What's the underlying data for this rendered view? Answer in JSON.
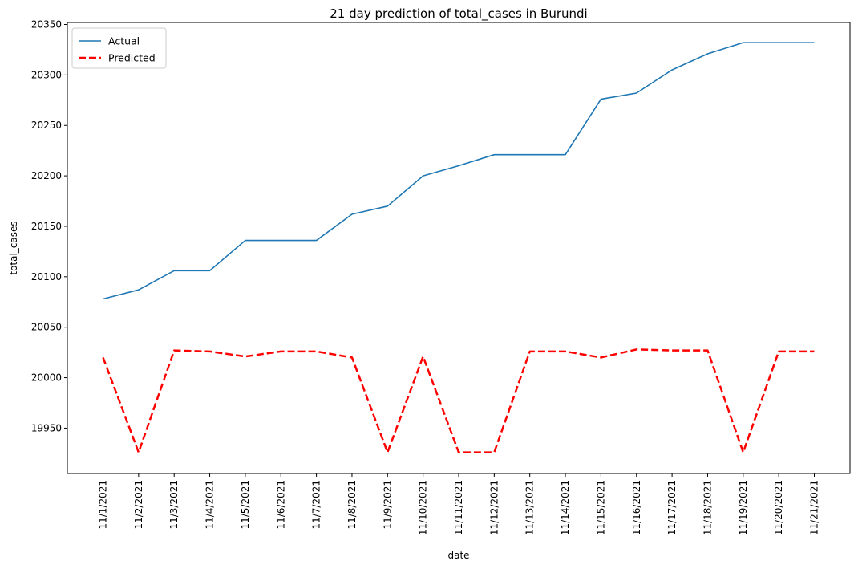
{
  "chart_data": {
    "type": "line",
    "title": "21 day prediction of total_cases in Burundi",
    "xlabel": "date",
    "ylabel": "total_cases",
    "categories": [
      "11/1/2021",
      "11/2/2021",
      "11/3/2021",
      "11/4/2021",
      "11/5/2021",
      "11/6/2021",
      "11/7/2021",
      "11/8/2021",
      "11/9/2021",
      "11/10/2021",
      "11/11/2021",
      "11/12/2021",
      "11/13/2021",
      "11/14/2021",
      "11/15/2021",
      "11/16/2021",
      "11/17/2021",
      "11/18/2021",
      "11/19/2021",
      "11/20/2021",
      "11/21/2021"
    ],
    "ylim": [
      19905,
      20352
    ],
    "yticks": [
      19950,
      20000,
      20050,
      20100,
      20150,
      20200,
      20250,
      20300,
      20350
    ],
    "grid": false,
    "legend": "upper-left",
    "series": [
      {
        "name": "Actual",
        "color": "#1f77b4",
        "style": "solid",
        "values": [
          20078,
          20087,
          20106,
          20106,
          20136,
          20136,
          20136,
          20162,
          20170,
          20200,
          20210,
          20221,
          20221,
          20221,
          20276,
          20282,
          20305,
          20321,
          20332,
          20332,
          20332
        ]
      },
      {
        "name": "Predicted",
        "color": "#ff0000",
        "style": "dashed",
        "values": [
          20020,
          19926,
          20027,
          20026,
          20021,
          20026,
          20026,
          20020,
          19926,
          20021,
          19926,
          19926,
          20026,
          20026,
          20020,
          20028,
          20027,
          20027,
          19926,
          20026,
          20026
        ]
      }
    ]
  }
}
